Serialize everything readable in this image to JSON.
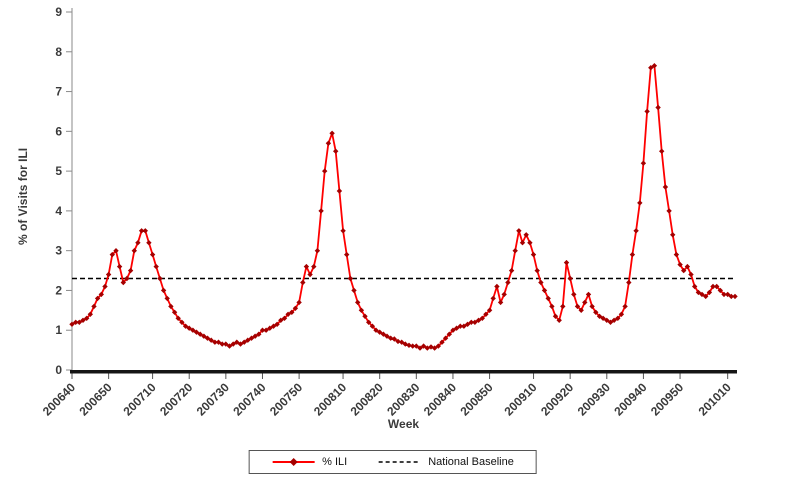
{
  "chart_data": {
    "type": "line",
    "title": "",
    "xlabel": "Week",
    "ylabel": "% of Visits for ILI",
    "ylim": [
      0,
      9
    ],
    "yticks": [
      0,
      1,
      2,
      3,
      4,
      5,
      6,
      7,
      8,
      9
    ],
    "grid": false,
    "legend_position": "bottom-center",
    "xtick_weeks": [
      200640,
      200650,
      200710,
      200720,
      200730,
      200740,
      200750,
      200810,
      200820,
      200830,
      200840,
      200850,
      200910,
      200920,
      200930,
      200940,
      200950,
      201010
    ],
    "baseline": {
      "name": "National Baseline",
      "value": 2.3,
      "color": "#000000",
      "style": "dashed"
    },
    "series": [
      {
        "name": "% ILI",
        "color": "#ff0000",
        "marker": "diamond",
        "marker_color": "#a50000",
        "weeks": [
          200640,
          200641,
          200642,
          200643,
          200644,
          200645,
          200646,
          200647,
          200648,
          200649,
          200650,
          200651,
          200652,
          200701,
          200702,
          200703,
          200704,
          200705,
          200706,
          200707,
          200708,
          200709,
          200710,
          200711,
          200712,
          200713,
          200714,
          200715,
          200716,
          200717,
          200718,
          200719,
          200720,
          200721,
          200722,
          200723,
          200724,
          200725,
          200726,
          200727,
          200728,
          200729,
          200730,
          200731,
          200732,
          200733,
          200734,
          200735,
          200736,
          200737,
          200738,
          200739,
          200740,
          200741,
          200742,
          200743,
          200744,
          200745,
          200746,
          200747,
          200748,
          200749,
          200750,
          200751,
          200752,
          200801,
          200802,
          200803,
          200804,
          200805,
          200806,
          200807,
          200808,
          200809,
          200810,
          200811,
          200812,
          200813,
          200814,
          200815,
          200816,
          200817,
          200818,
          200819,
          200820,
          200821,
          200822,
          200823,
          200824,
          200825,
          200826,
          200827,
          200828,
          200829,
          200830,
          200831,
          200832,
          200833,
          200834,
          200835,
          200836,
          200837,
          200838,
          200839,
          200840,
          200841,
          200842,
          200843,
          200844,
          200845,
          200846,
          200847,
          200848,
          200849,
          200850,
          200851,
          200852,
          200901,
          200902,
          200903,
          200904,
          200905,
          200906,
          200907,
          200908,
          200909,
          200910,
          200911,
          200912,
          200913,
          200914,
          200915,
          200916,
          200917,
          200918,
          200919,
          200920,
          200921,
          200922,
          200923,
          200924,
          200925,
          200926,
          200927,
          200928,
          200929,
          200930,
          200931,
          200932,
          200933,
          200934,
          200935,
          200936,
          200937,
          200938,
          200939,
          200940,
          200941,
          200942,
          200943,
          200944,
          200945,
          200946,
          200947,
          200948,
          200949,
          200950,
          200951,
          200952,
          200953,
          201001,
          201002,
          201003,
          201004,
          201005,
          201006,
          201007,
          201008,
          201009,
          201010,
          201011,
          201012
        ],
        "values": [
          1.15,
          1.2,
          1.2,
          1.25,
          1.3,
          1.4,
          1.6,
          1.8,
          1.9,
          2.1,
          2.4,
          2.9,
          3.0,
          2.6,
          2.2,
          2.3,
          2.5,
          3.0,
          3.2,
          3.5,
          3.5,
          3.2,
          2.9,
          2.6,
          2.3,
          2.0,
          1.8,
          1.6,
          1.45,
          1.3,
          1.2,
          1.1,
          1.05,
          1.0,
          0.95,
          0.9,
          0.85,
          0.8,
          0.75,
          0.7,
          0.7,
          0.65,
          0.65,
          0.6,
          0.65,
          0.7,
          0.65,
          0.7,
          0.75,
          0.8,
          0.85,
          0.9,
          1.0,
          1.0,
          1.05,
          1.1,
          1.15,
          1.25,
          1.3,
          1.4,
          1.45,
          1.55,
          1.7,
          2.2,
          2.6,
          2.4,
          2.6,
          3.0,
          4.0,
          5.0,
          5.7,
          5.95,
          5.5,
          4.5,
          3.5,
          2.9,
          2.3,
          2.0,
          1.7,
          1.5,
          1.35,
          1.2,
          1.1,
          1.0,
          0.95,
          0.9,
          0.85,
          0.8,
          0.78,
          0.72,
          0.7,
          0.65,
          0.62,
          0.6,
          0.6,
          0.55,
          0.6,
          0.55,
          0.58,
          0.55,
          0.6,
          0.7,
          0.8,
          0.9,
          1.0,
          1.05,
          1.1,
          1.1,
          1.15,
          1.2,
          1.2,
          1.25,
          1.3,
          1.4,
          1.5,
          1.8,
          2.1,
          1.7,
          1.9,
          2.2,
          2.5,
          3.0,
          3.5,
          3.2,
          3.4,
          3.2,
          2.9,
          2.5,
          2.2,
          2.0,
          1.8,
          1.6,
          1.35,
          1.25,
          1.6,
          2.7,
          2.3,
          1.9,
          1.6,
          1.5,
          1.7,
          1.9,
          1.6,
          1.45,
          1.35,
          1.3,
          1.25,
          1.2,
          1.25,
          1.3,
          1.4,
          1.6,
          2.2,
          2.9,
          3.5,
          4.2,
          5.2,
          6.5,
          7.6,
          7.65,
          6.6,
          5.5,
          4.6,
          4.0,
          3.4,
          2.9,
          2.65,
          2.5,
          2.6,
          2.4,
          2.1,
          1.95,
          1.9,
          1.85,
          1.95,
          2.1,
          2.1,
          2.0,
          1.9,
          1.9,
          1.85,
          1.85
        ]
      }
    ]
  }
}
